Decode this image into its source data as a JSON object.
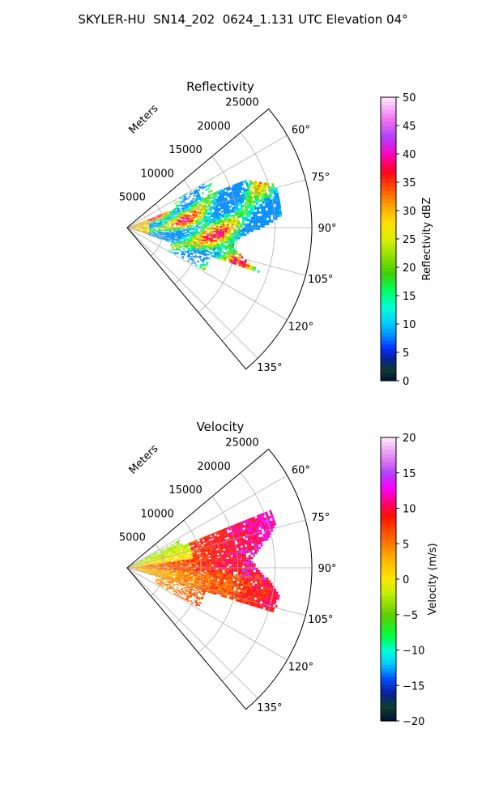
{
  "title": "SKYLER-HU  SN14_202  0624_1.131 UTC Elevation 04°",
  "chart_data": [
    {
      "type": "heatmap",
      "title": "Reflectivity",
      "projection": "polar-sector",
      "r_axis_label": "Meters",
      "r_ticks": [
        5000,
        10000,
        15000,
        20000,
        25000
      ],
      "r_max": 25000,
      "theta_range_deg": [
        50,
        140
      ],
      "theta_ticks": [
        60,
        75,
        90,
        105,
        120,
        135
      ],
      "theta_tick_labels": [
        "60°",
        "75°",
        "90°",
        "105°",
        "120°",
        "135°"
      ],
      "grid": true,
      "colorbar": {
        "label": "Reflectivity dBZ",
        "range": [
          0,
          50
        ],
        "ticks": [
          0,
          5,
          10,
          15,
          20,
          25,
          30,
          35,
          40,
          45,
          50
        ],
        "stops": [
          {
            "v": 0,
            "c": "#00103a"
          },
          {
            "v": 2,
            "c": "#0d3d2d"
          },
          {
            "v": 4,
            "c": "#0a1f9a"
          },
          {
            "v": 6,
            "c": "#0038ff"
          },
          {
            "v": 8,
            "c": "#008cff"
          },
          {
            "v": 10,
            "c": "#00c8ff"
          },
          {
            "v": 13,
            "c": "#00ffd8"
          },
          {
            "v": 16,
            "c": "#00ff60"
          },
          {
            "v": 19,
            "c": "#40d000"
          },
          {
            "v": 22,
            "c": "#90e000"
          },
          {
            "v": 25,
            "c": "#d8f000"
          },
          {
            "v": 28,
            "c": "#ffe000"
          },
          {
            "v": 31,
            "c": "#ffa000"
          },
          {
            "v": 34,
            "c": "#ff5000"
          },
          {
            "v": 37,
            "c": "#ff0020"
          },
          {
            "v": 40,
            "c": "#ff00c0"
          },
          {
            "v": 43,
            "c": "#b040ff"
          },
          {
            "v": 46,
            "c": "#f070f0"
          },
          {
            "v": 50,
            "c": "#ffe8ff"
          }
        ]
      }
    },
    {
      "type": "heatmap",
      "title": "Velocity",
      "projection": "polar-sector",
      "r_axis_label": "Meters",
      "r_ticks": [
        5000,
        10000,
        15000,
        20000,
        25000
      ],
      "r_max": 25000,
      "theta_range_deg": [
        50,
        140
      ],
      "theta_ticks": [
        60,
        75,
        90,
        105,
        120,
        135
      ],
      "theta_tick_labels": [
        "60°",
        "75°",
        "90°",
        "105°",
        "120°",
        "135°"
      ],
      "grid": true,
      "colorbar": {
        "label": "Velocity (m/s)",
        "range": [
          -20,
          20
        ],
        "ticks": [
          -20,
          -15,
          -10,
          -5,
          0,
          5,
          10,
          15,
          20
        ],
        "stops": [
          {
            "v": -20,
            "c": "#00103a"
          },
          {
            "v": -18,
            "c": "#0d3d2d"
          },
          {
            "v": -16,
            "c": "#0a1f9a"
          },
          {
            "v": -14,
            "c": "#0050ff"
          },
          {
            "v": -12,
            "c": "#00c8ff"
          },
          {
            "v": -10,
            "c": "#00ffd8"
          },
          {
            "v": -8,
            "c": "#00ff40"
          },
          {
            "v": -5,
            "c": "#60d000"
          },
          {
            "v": -2,
            "c": "#c0f000"
          },
          {
            "v": 0,
            "c": "#ffe800"
          },
          {
            "v": 3,
            "c": "#ffb000"
          },
          {
            "v": 6,
            "c": "#ff6000"
          },
          {
            "v": 9,
            "c": "#ff1000"
          },
          {
            "v": 11,
            "c": "#ff0080"
          },
          {
            "v": 13,
            "c": "#ff00ff"
          },
          {
            "v": 15,
            "c": "#b040ff"
          },
          {
            "v": 17,
            "c": "#e080f0"
          },
          {
            "v": 20,
            "c": "#ffe8ff"
          }
        ]
      }
    }
  ]
}
